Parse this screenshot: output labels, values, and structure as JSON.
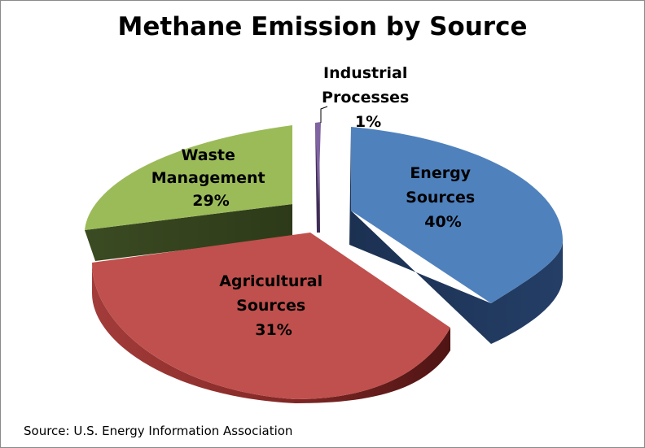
{
  "title": "Methane Emission by Source",
  "source_note": "Source: U.S. Energy Information Association",
  "chart_data": {
    "type": "pie",
    "title": "Methane Emission by Source",
    "exploded": true,
    "three_d": true,
    "slices": [
      {
        "label": [
          "Energy",
          "Sources"
        ],
        "value": 40,
        "value_label": "40%",
        "color": "#4F81BD",
        "side_color": "#1F3658"
      },
      {
        "label": [
          "Agricultural",
          "Sources"
        ],
        "value": 31,
        "value_label": "31%",
        "color": "#C0504D",
        "side_color": "#6E1F1D"
      },
      {
        "label": [
          "Waste",
          "Management"
        ],
        "value": 29,
        "value_label": "29%",
        "color": "#9BBB59",
        "side_color": "#3C4D22"
      },
      {
        "label": [
          "Industrial",
          "Processes"
        ],
        "value": 1,
        "value_label": "1%",
        "color": "#8064A2",
        "side_color": "#3F2D57"
      }
    ]
  }
}
